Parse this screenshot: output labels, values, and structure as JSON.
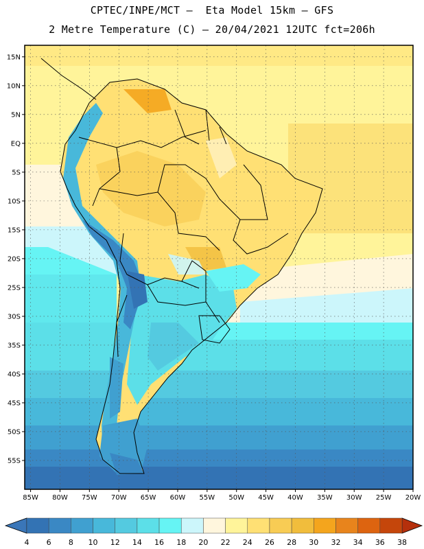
{
  "header": {
    "line1": "CPTEC/INPE/MCT –  Eta Model 15km – GFS",
    "line2": "2 Metre Temperature (C) – 20/04/2021 12UTC fct=206h"
  },
  "axes": {
    "lon_min": -86,
    "lon_max": -20,
    "lat_min": -60,
    "lat_max": 17,
    "lon_ticks": [
      {
        "v": -85,
        "label": "85W"
      },
      {
        "v": -80,
        "label": "80W"
      },
      {
        "v": -75,
        "label": "75W"
      },
      {
        "v": -70,
        "label": "70W"
      },
      {
        "v": -65,
        "label": "65W"
      },
      {
        "v": -60,
        "label": "60W"
      },
      {
        "v": -55,
        "label": "55W"
      },
      {
        "v": -50,
        "label": "50W"
      },
      {
        "v": -45,
        "label": "45W"
      },
      {
        "v": -40,
        "label": "40W"
      },
      {
        "v": -35,
        "label": "35W"
      },
      {
        "v": -30,
        "label": "30W"
      },
      {
        "v": -25,
        "label": "25W"
      },
      {
        "v": -20,
        "label": "20W"
      }
    ],
    "lat_ticks": [
      {
        "v": 15,
        "label": "15N"
      },
      {
        "v": 10,
        "label": "10N"
      },
      {
        "v": 5,
        "label": "5N"
      },
      {
        "v": 0,
        "label": "EQ"
      },
      {
        "v": -5,
        "label": "5S"
      },
      {
        "v": -10,
        "label": "10S"
      },
      {
        "v": -15,
        "label": "15S"
      },
      {
        "v": -20,
        "label": "20S"
      },
      {
        "v": -25,
        "label": "25S"
      },
      {
        "v": -30,
        "label": "30S"
      },
      {
        "v": -35,
        "label": "35S"
      },
      {
        "v": -40,
        "label": "40S"
      },
      {
        "v": -45,
        "label": "45S"
      },
      {
        "v": -50,
        "label": "50S"
      },
      {
        "v": -55,
        "label": "55S"
      }
    ],
    "grid": "dotted"
  },
  "colorbar": {
    "labels": [
      "4",
      "6",
      "8",
      "10",
      "12",
      "14",
      "16",
      "18",
      "20",
      "22",
      "24",
      "26",
      "28",
      "30",
      "32",
      "34",
      "36",
      "38"
    ],
    "low_color": "#3a76b8",
    "high_color": "#b5300c",
    "colors": [
      "#3373b4",
      "#3a88c4",
      "#40a0d0",
      "#48b8da",
      "#54cae0",
      "#5cdfe8",
      "#66f4f4",
      "#ccf6fb",
      "#fff6dd",
      "#fff49a",
      "#ffe074",
      "#f8cc54",
      "#f1bd3c",
      "#f4a51d",
      "#e8841c",
      "#dd6410",
      "#c5460b"
    ]
  },
  "legend_colors": {
    "ocean_south": "#3373b4",
    "ocean_mid": "#54cae0",
    "ocean_tropics": "#fff49a",
    "land_warm": "#ffe074",
    "land_hot": "#f4a51d",
    "andes": "#3a88c4",
    "cool_land": "#5cdfe8"
  }
}
